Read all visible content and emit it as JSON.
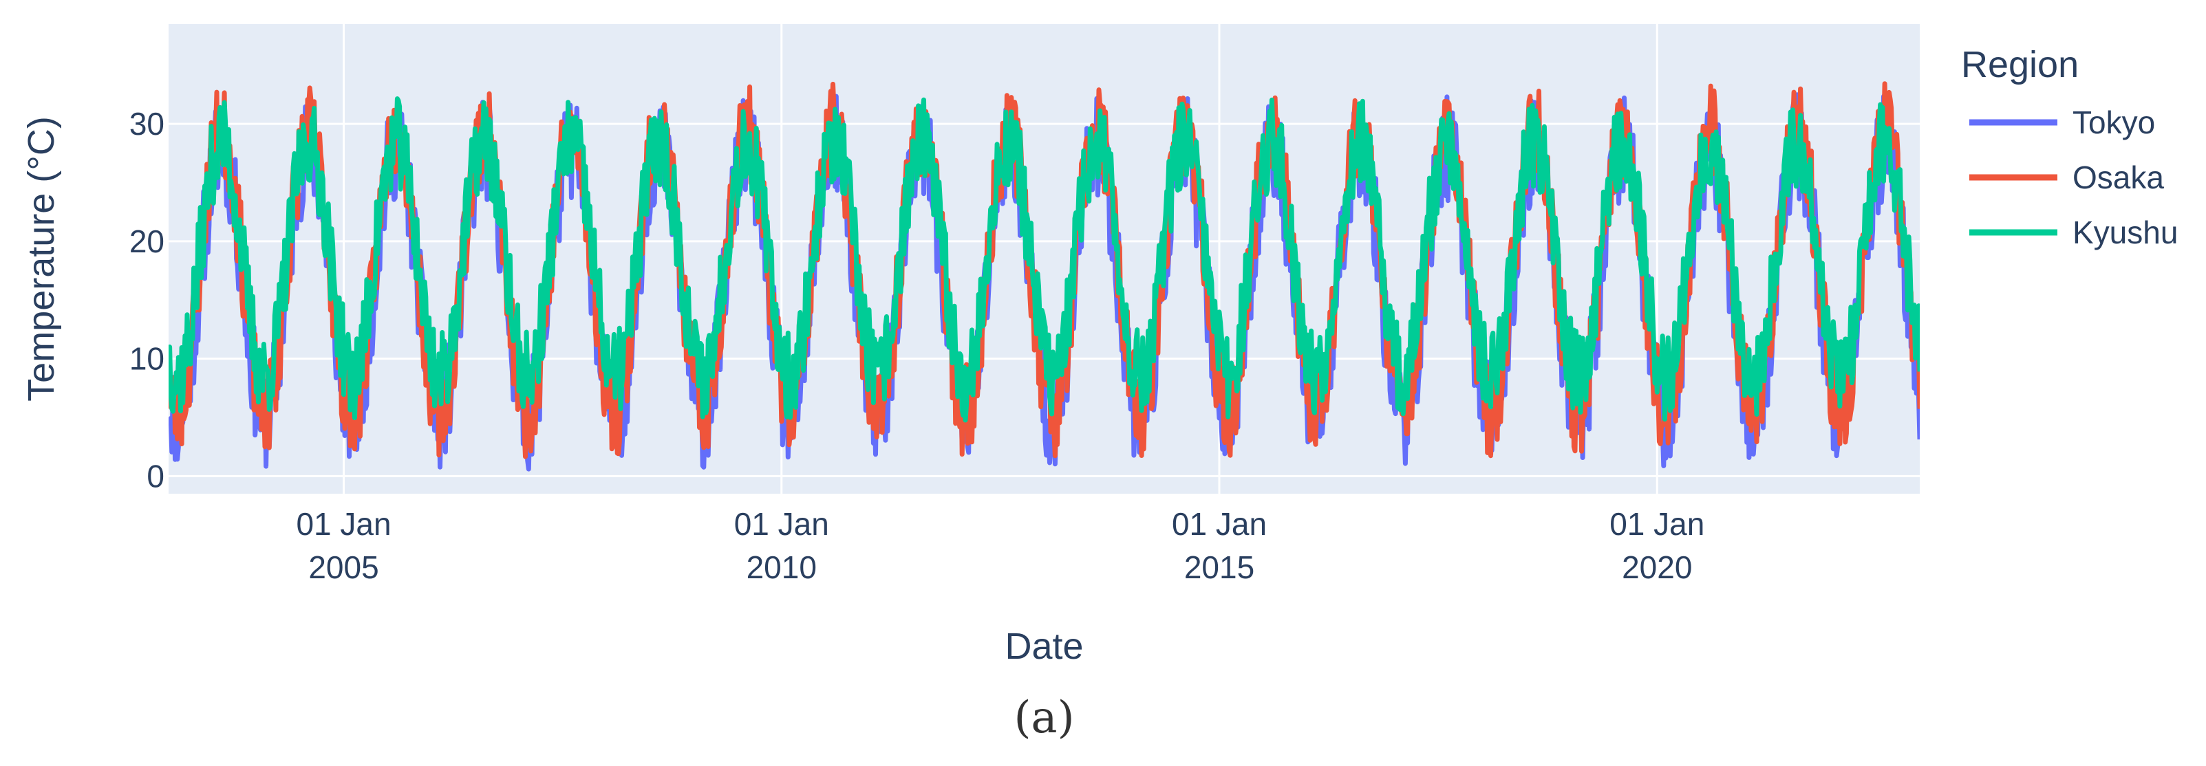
{
  "chart_data": {
    "type": "line",
    "title": "",
    "xlabel": "Date",
    "ylabel": "Temperature (°C)",
    "caption": "(a)",
    "x_range": [
      2003.0,
      2023.0
    ],
    "ylim": [
      -1.5,
      38.5
    ],
    "y_ticks": [
      0,
      10,
      20,
      30
    ],
    "x_ticks": [
      {
        "value": 2005.0,
        "line1": "01 Jan",
        "line2": "2005"
      },
      {
        "value": 2010.0,
        "line1": "01 Jan",
        "line2": "2010"
      },
      {
        "value": 2015.0,
        "line1": "01 Jan",
        "line2": "2015"
      },
      {
        "value": 2020.0,
        "line1": "01 Jan",
        "line2": "2020"
      }
    ],
    "x_start": 2003.0,
    "x_end": 2023.0,
    "sample_step_years": 0.0125,
    "grid": true,
    "legend": {
      "title": "Region",
      "position": "right"
    },
    "series": [
      {
        "name": "Tokyo",
        "color": "#636efa",
        "mean": 16.5,
        "amplitude": 11.5,
        "noise": 4.5,
        "seed": 11
      },
      {
        "name": "Osaka",
        "color": "#ef553b",
        "mean": 17.5,
        "amplitude": 12.0,
        "noise": 4.0,
        "seed": 23
      },
      {
        "name": "Kyushu",
        "color": "#00cc96",
        "mean": 18.5,
        "amplitude": 10.0,
        "noise": 3.8,
        "seed": 37
      }
    ],
    "colors": {
      "plot_bg": "#e5ecf6",
      "grid": "#ffffff",
      "text": "#2a3f5f"
    }
  }
}
